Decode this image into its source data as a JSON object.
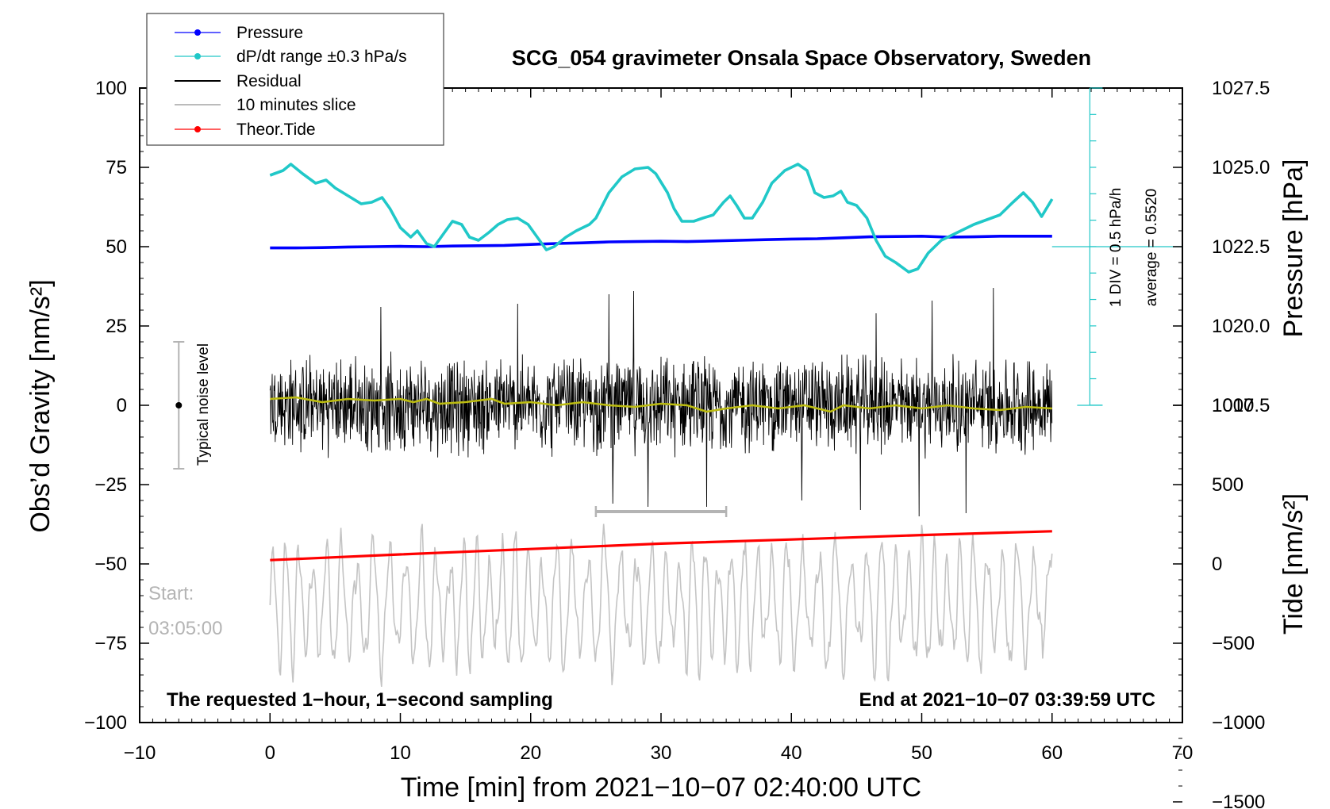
{
  "chart_data": {
    "type": "line",
    "title": "SCG_054 gravimeter Onsala Space Observatory, Sweden",
    "xlabel": "Time [min] from 2021−10−07 02:40:00 UTC",
    "ylabel_left": "Obs’d Gravity [nm/s²]",
    "ylabel_right_top": "Pressure [hPa]",
    "ylabel_right_bottom": "Tide [nm/s²]",
    "xlim": [
      -10,
      70
    ],
    "ylim_left": [
      -100,
      100
    ],
    "x_ticks": [
      {
        "v": -10,
        "label": "−10"
      },
      {
        "v": 0,
        "label": "0"
      },
      {
        "v": 10,
        "label": "10"
      },
      {
        "v": 20,
        "label": "20"
      },
      {
        "v": 30,
        "label": "30"
      },
      {
        "v": 40,
        "label": "40"
      },
      {
        "v": 50,
        "label": "50"
      },
      {
        "v": 60,
        "label": "60"
      },
      {
        "v": 70,
        "label": "70"
      }
    ],
    "y_ticks_left": [
      {
        "v": 100,
        "label": "100"
      },
      {
        "v": 75,
        "label": "75"
      },
      {
        "v": 50,
        "label": "50"
      },
      {
        "v": 25,
        "label": "25"
      },
      {
        "v": 0,
        "label": "0"
      },
      {
        "v": -25,
        "label": "−25"
      },
      {
        "v": -50,
        "label": "−50"
      },
      {
        "v": -75,
        "label": "−75"
      },
      {
        "v": -100,
        "label": "−100"
      }
    ],
    "pressure_axis": {
      "ticks": [
        {
          "v": 1027.5,
          "label": "1027.5"
        },
        {
          "v": 1025.0,
          "label": "1025.0"
        },
        {
          "v": 1022.5,
          "label": "1022.5"
        },
        {
          "v": 1020.0,
          "label": "1020.0"
        },
        {
          "v": 1017.5,
          "label": "1017.5"
        }
      ],
      "ref": {
        "hpa": 1022.5,
        "gravity": 50
      },
      "gravity_per_hpa": 10
    },
    "tide_axis": {
      "ticks": [
        {
          "v": 1000,
          "label": "1000"
        },
        {
          "v": 500,
          "label": "500"
        },
        {
          "v": 0,
          "label": "0"
        },
        {
          "v": -500,
          "label": "−500"
        },
        {
          "v": -1000,
          "label": "−1000"
        },
        {
          "v": -1500,
          "label": "−1500"
        }
      ],
      "ref": {
        "tide": 0,
        "gravity": -50
      },
      "gravity_per_unit": 0.05
    },
    "dpdt_scale": {
      "x": 62.9,
      "top": 100,
      "bottom": 0,
      "zero": 50,
      "div_step": 8.33,
      "label": "1 DIV = 0.5 hPa/h",
      "average_label": "average = 0.5520"
    },
    "noise_bar": {
      "x": -7,
      "center": 0,
      "half": 20,
      "label": "Typical noise level"
    },
    "slice_bar": {
      "x0": 25,
      "x1": 35,
      "y": -33.5
    },
    "series": [
      {
        "name": "Pressure",
        "color": "#0000ff",
        "points": [
          [
            0,
            49.6
          ],
          [
            2,
            49.6
          ],
          [
            4,
            49.7
          ],
          [
            6,
            49.9
          ],
          [
            8,
            50.0
          ],
          [
            10,
            50.1
          ],
          [
            12,
            50.0
          ],
          [
            14,
            50.2
          ],
          [
            16,
            50.3
          ],
          [
            18,
            50.4
          ],
          [
            20,
            50.7
          ],
          [
            22,
            51.0
          ],
          [
            24,
            51.2
          ],
          [
            26,
            51.5
          ],
          [
            28,
            51.6
          ],
          [
            30,
            51.7
          ],
          [
            32,
            51.6
          ],
          [
            34,
            51.8
          ],
          [
            36,
            52.0
          ],
          [
            38,
            52.2
          ],
          [
            40,
            52.4
          ],
          [
            42,
            52.5
          ],
          [
            44,
            52.8
          ],
          [
            46,
            53.1
          ],
          [
            48,
            53.2
          ],
          [
            50,
            53.3
          ],
          [
            52,
            53.0
          ],
          [
            54,
            53.1
          ],
          [
            56,
            53.3
          ],
          [
            58,
            53.3
          ],
          [
            60,
            53.3
          ]
        ]
      },
      {
        "name": "dP/dt range ±0.3 hPa/s",
        "color": "#20c8c8",
        "points": [
          [
            0,
            72.5
          ],
          [
            1,
            74
          ],
          [
            1.6,
            76
          ],
          [
            2.5,
            73
          ],
          [
            3.5,
            70
          ],
          [
            4.3,
            71
          ],
          [
            5,
            68.5
          ],
          [
            6,
            66
          ],
          [
            7,
            63.5
          ],
          [
            7.8,
            64
          ],
          [
            8.6,
            65.5
          ],
          [
            9.2,
            62
          ],
          [
            10,
            56
          ],
          [
            10.8,
            53
          ],
          [
            11.3,
            55
          ],
          [
            12,
            51
          ],
          [
            12.6,
            50
          ],
          [
            13.3,
            54
          ],
          [
            14,
            58
          ],
          [
            14.7,
            57
          ],
          [
            15.3,
            53
          ],
          [
            16,
            52
          ],
          [
            16.8,
            54.5
          ],
          [
            17.5,
            57
          ],
          [
            18.2,
            58.5
          ],
          [
            19,
            59
          ],
          [
            19.8,
            57
          ],
          [
            20.5,
            53
          ],
          [
            21.2,
            49
          ],
          [
            21.8,
            50
          ],
          [
            22.7,
            53
          ],
          [
            23.5,
            55
          ],
          [
            24.5,
            57
          ],
          [
            25,
            59
          ],
          [
            26,
            67
          ],
          [
            27,
            72
          ],
          [
            28,
            74.5
          ],
          [
            29,
            75
          ],
          [
            29.6,
            73
          ],
          [
            30.5,
            67
          ],
          [
            31,
            62
          ],
          [
            31.6,
            58
          ],
          [
            32.5,
            58
          ],
          [
            33.2,
            59
          ],
          [
            34,
            60
          ],
          [
            34.8,
            64
          ],
          [
            35.3,
            66
          ],
          [
            35.8,
            63
          ],
          [
            36.4,
            59
          ],
          [
            37,
            59
          ],
          [
            37.8,
            64
          ],
          [
            38.5,
            70
          ],
          [
            39.5,
            74
          ],
          [
            40.5,
            76
          ],
          [
            41.2,
            74
          ],
          [
            41.8,
            67
          ],
          [
            42.5,
            65.5
          ],
          [
            43.2,
            66
          ],
          [
            43.8,
            67.5
          ],
          [
            44.3,
            64
          ],
          [
            45,
            63
          ],
          [
            45.8,
            59
          ],
          [
            46.5,
            52
          ],
          [
            47.2,
            47
          ],
          [
            48,
            45
          ],
          [
            49,
            42
          ],
          [
            49.7,
            43
          ],
          [
            50.5,
            48
          ],
          [
            51.5,
            52
          ],
          [
            52.5,
            54
          ],
          [
            53.5,
            56
          ],
          [
            54,
            57
          ],
          [
            55,
            58.5
          ],
          [
            56,
            60
          ],
          [
            57,
            64
          ],
          [
            57.8,
            67
          ],
          [
            58.5,
            64
          ],
          [
            59.2,
            59.5
          ],
          [
            60,
            65
          ]
        ]
      },
      {
        "name": "Residual",
        "color": "#000000"
      },
      {
        "name": "10 minutes slice",
        "color": "#bbbbbb"
      },
      {
        "name": "Theor.Tide",
        "color": "#ff0000",
        "points": [
          [
            0,
            -48.8
          ],
          [
            10,
            -47.0
          ],
          [
            20,
            -45.3
          ],
          [
            30,
            -43.6
          ],
          [
            40,
            -42.3
          ],
          [
            50,
            -40.9
          ],
          [
            60,
            -39.7
          ]
        ]
      }
    ],
    "residual": {
      "x0": 0,
      "x1": 60,
      "amplitude": 12,
      "peaks": [
        [
          27.9,
          36
        ],
        [
          26,
          35
        ],
        [
          8.5,
          31
        ],
        [
          19,
          32
        ],
        [
          45.3,
          -33
        ],
        [
          49.8,
          -35
        ],
        [
          33.5,
          -32
        ],
        [
          53.4,
          -34
        ],
        [
          50.8,
          33
        ],
        [
          55.5,
          37
        ],
        [
          46.5,
          29
        ],
        [
          40.8,
          -30
        ],
        [
          29,
          -32
        ],
        [
          26.3,
          -31
        ]
      ]
    },
    "smoothed_residual": {
      "color": "#bcbc10",
      "points": [
        [
          0,
          2
        ],
        [
          2,
          2.5
        ],
        [
          4,
          1
        ],
        [
          6,
          2
        ],
        [
          8,
          1.5
        ],
        [
          10,
          2
        ],
        [
          11,
          1
        ],
        [
          12,
          2
        ],
        [
          13,
          0.5
        ],
        [
          15,
          1
        ],
        [
          17,
          2
        ],
        [
          18,
          0.5
        ],
        [
          20,
          1
        ],
        [
          22,
          0
        ],
        [
          24,
          1
        ],
        [
          26,
          0
        ],
        [
          28,
          -0.5
        ],
        [
          30,
          0.5
        ],
        [
          32,
          0
        ],
        [
          33.5,
          -2
        ],
        [
          35,
          -1
        ],
        [
          37,
          0
        ],
        [
          39,
          -1
        ],
        [
          41,
          0
        ],
        [
          43,
          -2
        ],
        [
          44,
          0
        ],
        [
          46,
          -1
        ],
        [
          48,
          0
        ],
        [
          50,
          -1
        ],
        [
          52,
          0
        ],
        [
          54,
          -1
        ],
        [
          56,
          -1.5
        ],
        [
          58,
          -0.5
        ],
        [
          60,
          -1
        ]
      ]
    },
    "slice": {
      "x0": 0,
      "x1": 60,
      "center": -63,
      "amplitude": 12
    },
    "legend": [
      "Pressure",
      "dP/dt range ±0.3 hPa/s",
      "Residual",
      "10 minutes slice",
      "Theor.Tide"
    ],
    "annotations": {
      "start_label": "Start:",
      "start_time": "03:05:00",
      "note_left": "The requested 1−hour, 1−second sampling",
      "note_right": "End at 2021−10−07 03:39:59 UTC"
    }
  }
}
